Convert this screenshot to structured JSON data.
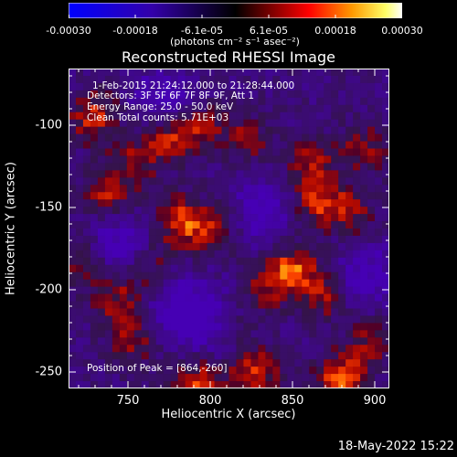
{
  "colorbar": {
    "tick_labels": [
      "-0.00030",
      "-0.00018",
      "-6.1e-05",
      "6.1e-05",
      "0.00018",
      "0.00030"
    ],
    "units_text": "(photons cm⁻² s⁻¹ asec⁻²)"
  },
  "title": "Reconstructed RHESSI Image",
  "annotations": {
    "time_range": "1-Feb-2015 21:24:12.000 to 21:28:44.000",
    "detectors": "Detectors: 3F 5F 6F 7F 8F 9F, Att 1",
    "energy_range": "Energy Range: 25.0 - 50.0 keV",
    "clean_counts": "Clean    Total counts: 5.71E+03",
    "peak": "Position of Peak = [864,-260]"
  },
  "axes": {
    "xlabel": "Heliocentric X (arcsec)",
    "ylabel": "Heliocentric Y (arcsec)",
    "xticks": [
      "750",
      "800",
      "850",
      "900"
    ],
    "yticks": [
      "-100",
      "-150",
      "-200",
      "-250"
    ]
  },
  "timestamp": "18-May-2022 15:22",
  "colors": {
    "background": "#000000",
    "cmap_low": "#0000ff",
    "cmap_mid": "#000000",
    "cmap_high": "#ffffff"
  }
}
